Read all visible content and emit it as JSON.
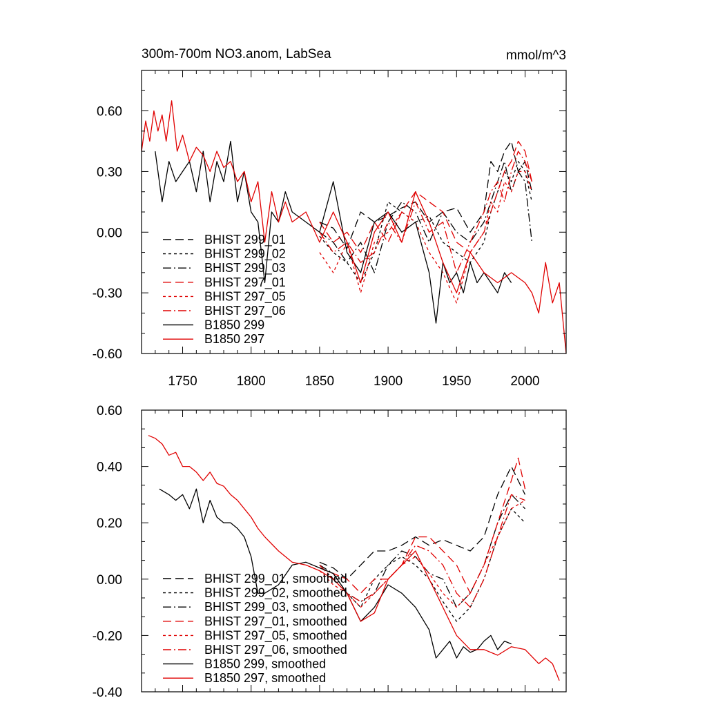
{
  "chart_data": [
    {
      "type": "line",
      "title": "300m-700m NO3.anom, LabSea",
      "units": "mmol/m^3",
      "xlabel": "",
      "ylabel": "",
      "xlim": [
        1720,
        2030
      ],
      "ylim": [
        -0.6,
        0.8
      ],
      "xticks": [
        1750,
        1800,
        1850,
        1900,
        1950,
        2000
      ],
      "xtick_labels": [
        "1750",
        "1800",
        "1850",
        "1900",
        "1950",
        "2000"
      ],
      "yticks": [
        -0.6,
        -0.3,
        0.0,
        0.3,
        0.6
      ],
      "ytick_labels": [
        "-0.60",
        "-0.30",
        "0.00",
        "0.30",
        "0.60"
      ],
      "grid": false,
      "legend_position": "bottom-left",
      "series": [
        {
          "name": "BHIST 299_01",
          "color": "#000000",
          "dash": "long-dash",
          "x": [
            1850,
            1860,
            1870,
            1880,
            1890,
            1900,
            1910,
            1920,
            1930,
            1940,
            1950,
            1960,
            1970,
            1975,
            1980,
            1985,
            1990,
            1995,
            2000,
            2005
          ],
          "y": [
            0.05,
            0.02,
            -0.08,
            0.1,
            0.05,
            0.08,
            0.12,
            0.15,
            0.05,
            0.1,
            0.12,
            0.0,
            0.1,
            0.35,
            0.3,
            0.4,
            0.45,
            0.3,
            0.35,
            0.2
          ]
        },
        {
          "name": "BHIST 299_02",
          "color": "#000000",
          "dash": "short-dash",
          "x": [
            1850,
            1860,
            1870,
            1880,
            1890,
            1900,
            1910,
            1920,
            1930,
            1940,
            1950,
            1960,
            1970,
            1975,
            1980,
            1985,
            1990,
            1995,
            2000,
            2005
          ],
          "y": [
            -0.02,
            -0.1,
            -0.15,
            -0.25,
            -0.1,
            0.15,
            0.1,
            0.05,
            0.08,
            -0.05,
            -0.1,
            -0.15,
            -0.05,
            0.1,
            0.2,
            0.3,
            0.25,
            0.35,
            0.3,
            0.15
          ]
        },
        {
          "name": "BHIST 299_03",
          "color": "#000000",
          "dash": "dash-dot",
          "x": [
            1850,
            1860,
            1870,
            1880,
            1890,
            1900,
            1910,
            1920,
            1930,
            1940,
            1950,
            1960,
            1970,
            1975,
            1980,
            1985,
            1990,
            1995,
            2000,
            2005
          ],
          "y": [
            0.0,
            -0.05,
            -0.15,
            -0.05,
            -0.2,
            0.05,
            0.15,
            0.1,
            -0.05,
            0.1,
            0.0,
            -0.05,
            0.05,
            0.15,
            0.25,
            0.35,
            0.2,
            0.3,
            0.25,
            -0.05
          ]
        },
        {
          "name": "BHIST 297_01",
          "color": "#e00000",
          "dash": "long-dash",
          "x": [
            1850,
            1860,
            1870,
            1880,
            1890,
            1900,
            1910,
            1920,
            1930,
            1940,
            1950,
            1960,
            1970,
            1975,
            1980,
            1985,
            1990,
            1995,
            2000,
            2005
          ],
          "y": [
            0.05,
            -0.05,
            0.0,
            -0.1,
            0.05,
            -0.05,
            0.1,
            0.2,
            0.15,
            0.1,
            -0.05,
            -0.1,
            0.0,
            0.1,
            0.2,
            0.3,
            0.35,
            0.45,
            0.4,
            0.25
          ]
        },
        {
          "name": "BHIST 297_05",
          "color": "#e00000",
          "dash": "short-dash",
          "x": [
            1850,
            1860,
            1870,
            1880,
            1890,
            1900,
            1910,
            1920,
            1930,
            1940,
            1950,
            1960,
            1970,
            1975,
            1980,
            1985,
            1990,
            1995,
            2000,
            2005
          ],
          "y": [
            -0.1,
            -0.2,
            -0.05,
            -0.3,
            -0.05,
            0.0,
            0.1,
            0.05,
            -0.1,
            -0.2,
            -0.35,
            -0.1,
            0.0,
            0.15,
            0.1,
            0.25,
            0.2,
            0.3,
            0.3,
            0.2
          ]
        },
        {
          "name": "BHIST 297_06",
          "color": "#e00000",
          "dash": "dash-dot",
          "x": [
            1850,
            1860,
            1870,
            1880,
            1890,
            1900,
            1910,
            1920,
            1930,
            1940,
            1950,
            1960,
            1970,
            1975,
            1980,
            1985,
            1990,
            1995,
            2000,
            2005
          ],
          "y": [
            0.0,
            -0.1,
            -0.05,
            -0.15,
            -0.1,
            0.05,
            -0.05,
            0.15,
            0.0,
            0.05,
            -0.2,
            -0.05,
            0.1,
            0.2,
            0.25,
            0.15,
            0.3,
            0.4,
            0.35,
            0.25
          ]
        },
        {
          "name": "B1850 299",
          "color": "#000000",
          "dash": "solid",
          "x": [
            1730,
            1735,
            1740,
            1745,
            1750,
            1755,
            1760,
            1765,
            1770,
            1775,
            1780,
            1785,
            1790,
            1795,
            1800,
            1805,
            1810,
            1815,
            1820,
            1825,
            1830,
            1840,
            1850,
            1860,
            1870,
            1880,
            1890,
            1900,
            1910,
            1920,
            1930,
            1935,
            1940,
            1945,
            1950,
            1955,
            1960,
            1965,
            1970,
            1975,
            1980,
            1985,
            1990
          ],
          "y": [
            0.4,
            0.15,
            0.35,
            0.25,
            0.3,
            0.35,
            0.2,
            0.4,
            0.15,
            0.35,
            0.25,
            0.45,
            0.15,
            0.3,
            0.1,
            0.05,
            -0.25,
            0.1,
            0.05,
            0.2,
            0.1,
            0.05,
            0.0,
            0.25,
            -0.1,
            -0.2,
            0.05,
            0.1,
            0.0,
            0.05,
            -0.2,
            -0.45,
            -0.15,
            -0.25,
            -0.2,
            -0.3,
            -0.15,
            -0.25,
            -0.2,
            -0.25,
            -0.3,
            -0.2,
            -0.25
          ]
        },
        {
          "name": "B1850 297",
          "color": "#e00000",
          "dash": "solid",
          "x": [
            1720,
            1723,
            1726,
            1729,
            1732,
            1735,
            1738,
            1742,
            1746,
            1750,
            1755,
            1760,
            1765,
            1770,
            1775,
            1780,
            1785,
            1790,
            1795,
            1800,
            1805,
            1810,
            1815,
            1820,
            1825,
            1830,
            1840,
            1850,
            1860,
            1870,
            1880,
            1890,
            1900,
            1910,
            1920,
            1930,
            1940,
            1950,
            1960,
            1970,
            1980,
            1990,
            2000,
            2005,
            2010,
            2015,
            2020,
            2025,
            2030
          ],
          "y": [
            0.4,
            0.55,
            0.45,
            0.6,
            0.5,
            0.58,
            0.45,
            0.65,
            0.4,
            0.48,
            0.35,
            0.42,
            0.38,
            0.3,
            0.4,
            0.32,
            0.35,
            0.25,
            0.3,
            0.15,
            0.25,
            -0.05,
            0.2,
            0.05,
            0.15,
            0.05,
            0.1,
            -0.05,
            0.1,
            -0.05,
            -0.25,
            0.0,
            0.1,
            -0.05,
            0.2,
            0.05,
            -0.15,
            -0.3,
            -0.1,
            -0.2,
            -0.25,
            -0.2,
            -0.25,
            -0.3,
            -0.4,
            -0.15,
            -0.35,
            -0.25,
            -0.6
          ]
        }
      ]
    },
    {
      "type": "line",
      "title": "",
      "xlabel": "",
      "ylabel": "",
      "xlim": [
        1720,
        2030
      ],
      "ylim": [
        -0.4,
        0.6
      ],
      "xticks": [
        1750,
        1800,
        1850,
        1900,
        1950,
        2000
      ],
      "yticks": [
        -0.4,
        -0.2,
        0.0,
        0.2,
        0.4,
        0.6
      ],
      "ytick_labels": [
        "-0.40",
        "-0.20",
        "0.00",
        "0.20",
        "0.40",
        "0.60"
      ],
      "grid": false,
      "legend_position": "bottom-left",
      "series": [
        {
          "name": "BHIST 299_01, smoothed",
          "color": "#000000",
          "dash": "long-dash",
          "x": [
            1850,
            1860,
            1870,
            1880,
            1890,
            1900,
            1910,
            1920,
            1930,
            1940,
            1950,
            1960,
            1970,
            1980,
            1990,
            2000
          ],
          "y": [
            0.06,
            0.04,
            0.0,
            0.05,
            0.1,
            0.1,
            0.12,
            0.15,
            0.12,
            0.14,
            0.12,
            0.1,
            0.15,
            0.3,
            0.4,
            0.3
          ]
        },
        {
          "name": "BHIST 299_02, smoothed",
          "color": "#000000",
          "dash": "short-dash",
          "x": [
            1850,
            1860,
            1870,
            1880,
            1890,
            1900,
            1910,
            1920,
            1930,
            1940,
            1950,
            1960,
            1970,
            1980,
            1990,
            2000
          ],
          "y": [
            0.05,
            0.0,
            -0.05,
            -0.1,
            0.0,
            0.05,
            0.08,
            0.05,
            0.0,
            -0.08,
            -0.15,
            -0.1,
            0.0,
            0.15,
            0.25,
            0.2
          ]
        },
        {
          "name": "BHIST 299_03, smoothed",
          "color": "#000000",
          "dash": "dash-dot",
          "x": [
            1850,
            1860,
            1870,
            1880,
            1890,
            1900,
            1910,
            1920,
            1930,
            1940,
            1950,
            1960,
            1970,
            1980,
            1990,
            2000
          ],
          "y": [
            0.05,
            0.02,
            -0.05,
            -0.08,
            -0.05,
            0.05,
            0.1,
            0.08,
            0.02,
            0.0,
            -0.1,
            -0.05,
            0.05,
            0.2,
            0.3,
            0.25
          ]
        },
        {
          "name": "BHIST 297_01, smoothed",
          "color": "#e00000",
          "dash": "long-dash",
          "x": [
            1850,
            1860,
            1870,
            1880,
            1890,
            1900,
            1910,
            1920,
            1930,
            1940,
            1950,
            1960,
            1970,
            1980,
            1990,
            1995,
            2000
          ],
          "y": [
            0.04,
            0.02,
            0.0,
            -0.05,
            0.0,
            0.0,
            0.05,
            0.15,
            0.15,
            0.1,
            0.05,
            -0.05,
            0.05,
            0.2,
            0.35,
            0.43,
            0.32
          ]
        },
        {
          "name": "BHIST 297_05, smoothed",
          "color": "#e00000",
          "dash": "short-dash",
          "x": [
            1850,
            1860,
            1870,
            1880,
            1890,
            1900,
            1910,
            1920,
            1930,
            1940,
            1950,
            1960,
            1970,
            1980,
            1990,
            2000
          ],
          "y": [
            0.03,
            -0.02,
            -0.05,
            -0.1,
            -0.05,
            0.0,
            0.05,
            0.08,
            0.02,
            -0.05,
            -0.1,
            -0.05,
            0.05,
            0.15,
            0.25,
            0.28
          ]
        },
        {
          "name": "BHIST 297_06, smoothed",
          "color": "#e00000",
          "dash": "dash-dot",
          "x": [
            1850,
            1860,
            1870,
            1880,
            1890,
            1900,
            1910,
            1920,
            1930,
            1940,
            1950,
            1960,
            1970,
            1980,
            1990,
            2000
          ],
          "y": [
            0.05,
            0.0,
            -0.05,
            -0.08,
            -0.05,
            0.0,
            0.05,
            0.12,
            0.1,
            0.05,
            -0.05,
            -0.1,
            0.0,
            0.15,
            0.3,
            0.28
          ]
        },
        {
          "name": "B1850 299, smoothed",
          "color": "#000000",
          "dash": "solid",
          "x": [
            1733,
            1740,
            1745,
            1750,
            1755,
            1760,
            1765,
            1770,
            1775,
            1780,
            1785,
            1790,
            1795,
            1800,
            1805,
            1810,
            1820,
            1830,
            1840,
            1850,
            1860,
            1870,
            1880,
            1890,
            1900,
            1910,
            1920,
            1930,
            1935,
            1940,
            1945,
            1950,
            1955,
            1960,
            1965,
            1970,
            1975,
            1980,
            1985,
            1990
          ],
          "y": [
            0.32,
            0.3,
            0.28,
            0.3,
            0.25,
            0.32,
            0.2,
            0.28,
            0.22,
            0.2,
            0.2,
            0.18,
            0.15,
            0.08,
            -0.05,
            -0.05,
            -0.02,
            0.05,
            0.06,
            0.04,
            0.02,
            -0.05,
            -0.15,
            -0.1,
            -0.02,
            -0.05,
            -0.1,
            -0.18,
            -0.28,
            -0.25,
            -0.22,
            -0.28,
            -0.24,
            -0.26,
            -0.25,
            -0.22,
            -0.2,
            -0.25,
            -0.22,
            -0.23
          ]
        },
        {
          "name": "B1850 297, smoothed",
          "color": "#e00000",
          "dash": "solid",
          "x": [
            1725,
            1730,
            1735,
            1740,
            1745,
            1750,
            1755,
            1760,
            1765,
            1770,
            1775,
            1780,
            1785,
            1790,
            1795,
            1800,
            1805,
            1810,
            1820,
            1830,
            1840,
            1850,
            1860,
            1870,
            1880,
            1890,
            1900,
            1910,
            1920,
            1930,
            1940,
            1950,
            1960,
            1970,
            1980,
            1990,
            2000,
            2010,
            2015,
            2020,
            2025
          ],
          "y": [
            0.51,
            0.5,
            0.48,
            0.44,
            0.45,
            0.4,
            0.4,
            0.38,
            0.35,
            0.38,
            0.34,
            0.33,
            0.3,
            0.28,
            0.25,
            0.22,
            0.18,
            0.15,
            0.1,
            0.06,
            0.05,
            0.03,
            0.0,
            -0.05,
            -0.15,
            -0.12,
            0.0,
            0.05,
            0.1,
            0.0,
            -0.1,
            -0.2,
            -0.25,
            -0.25,
            -0.27,
            -0.24,
            -0.25,
            -0.3,
            -0.28,
            -0.3,
            -0.36
          ]
        }
      ]
    }
  ]
}
